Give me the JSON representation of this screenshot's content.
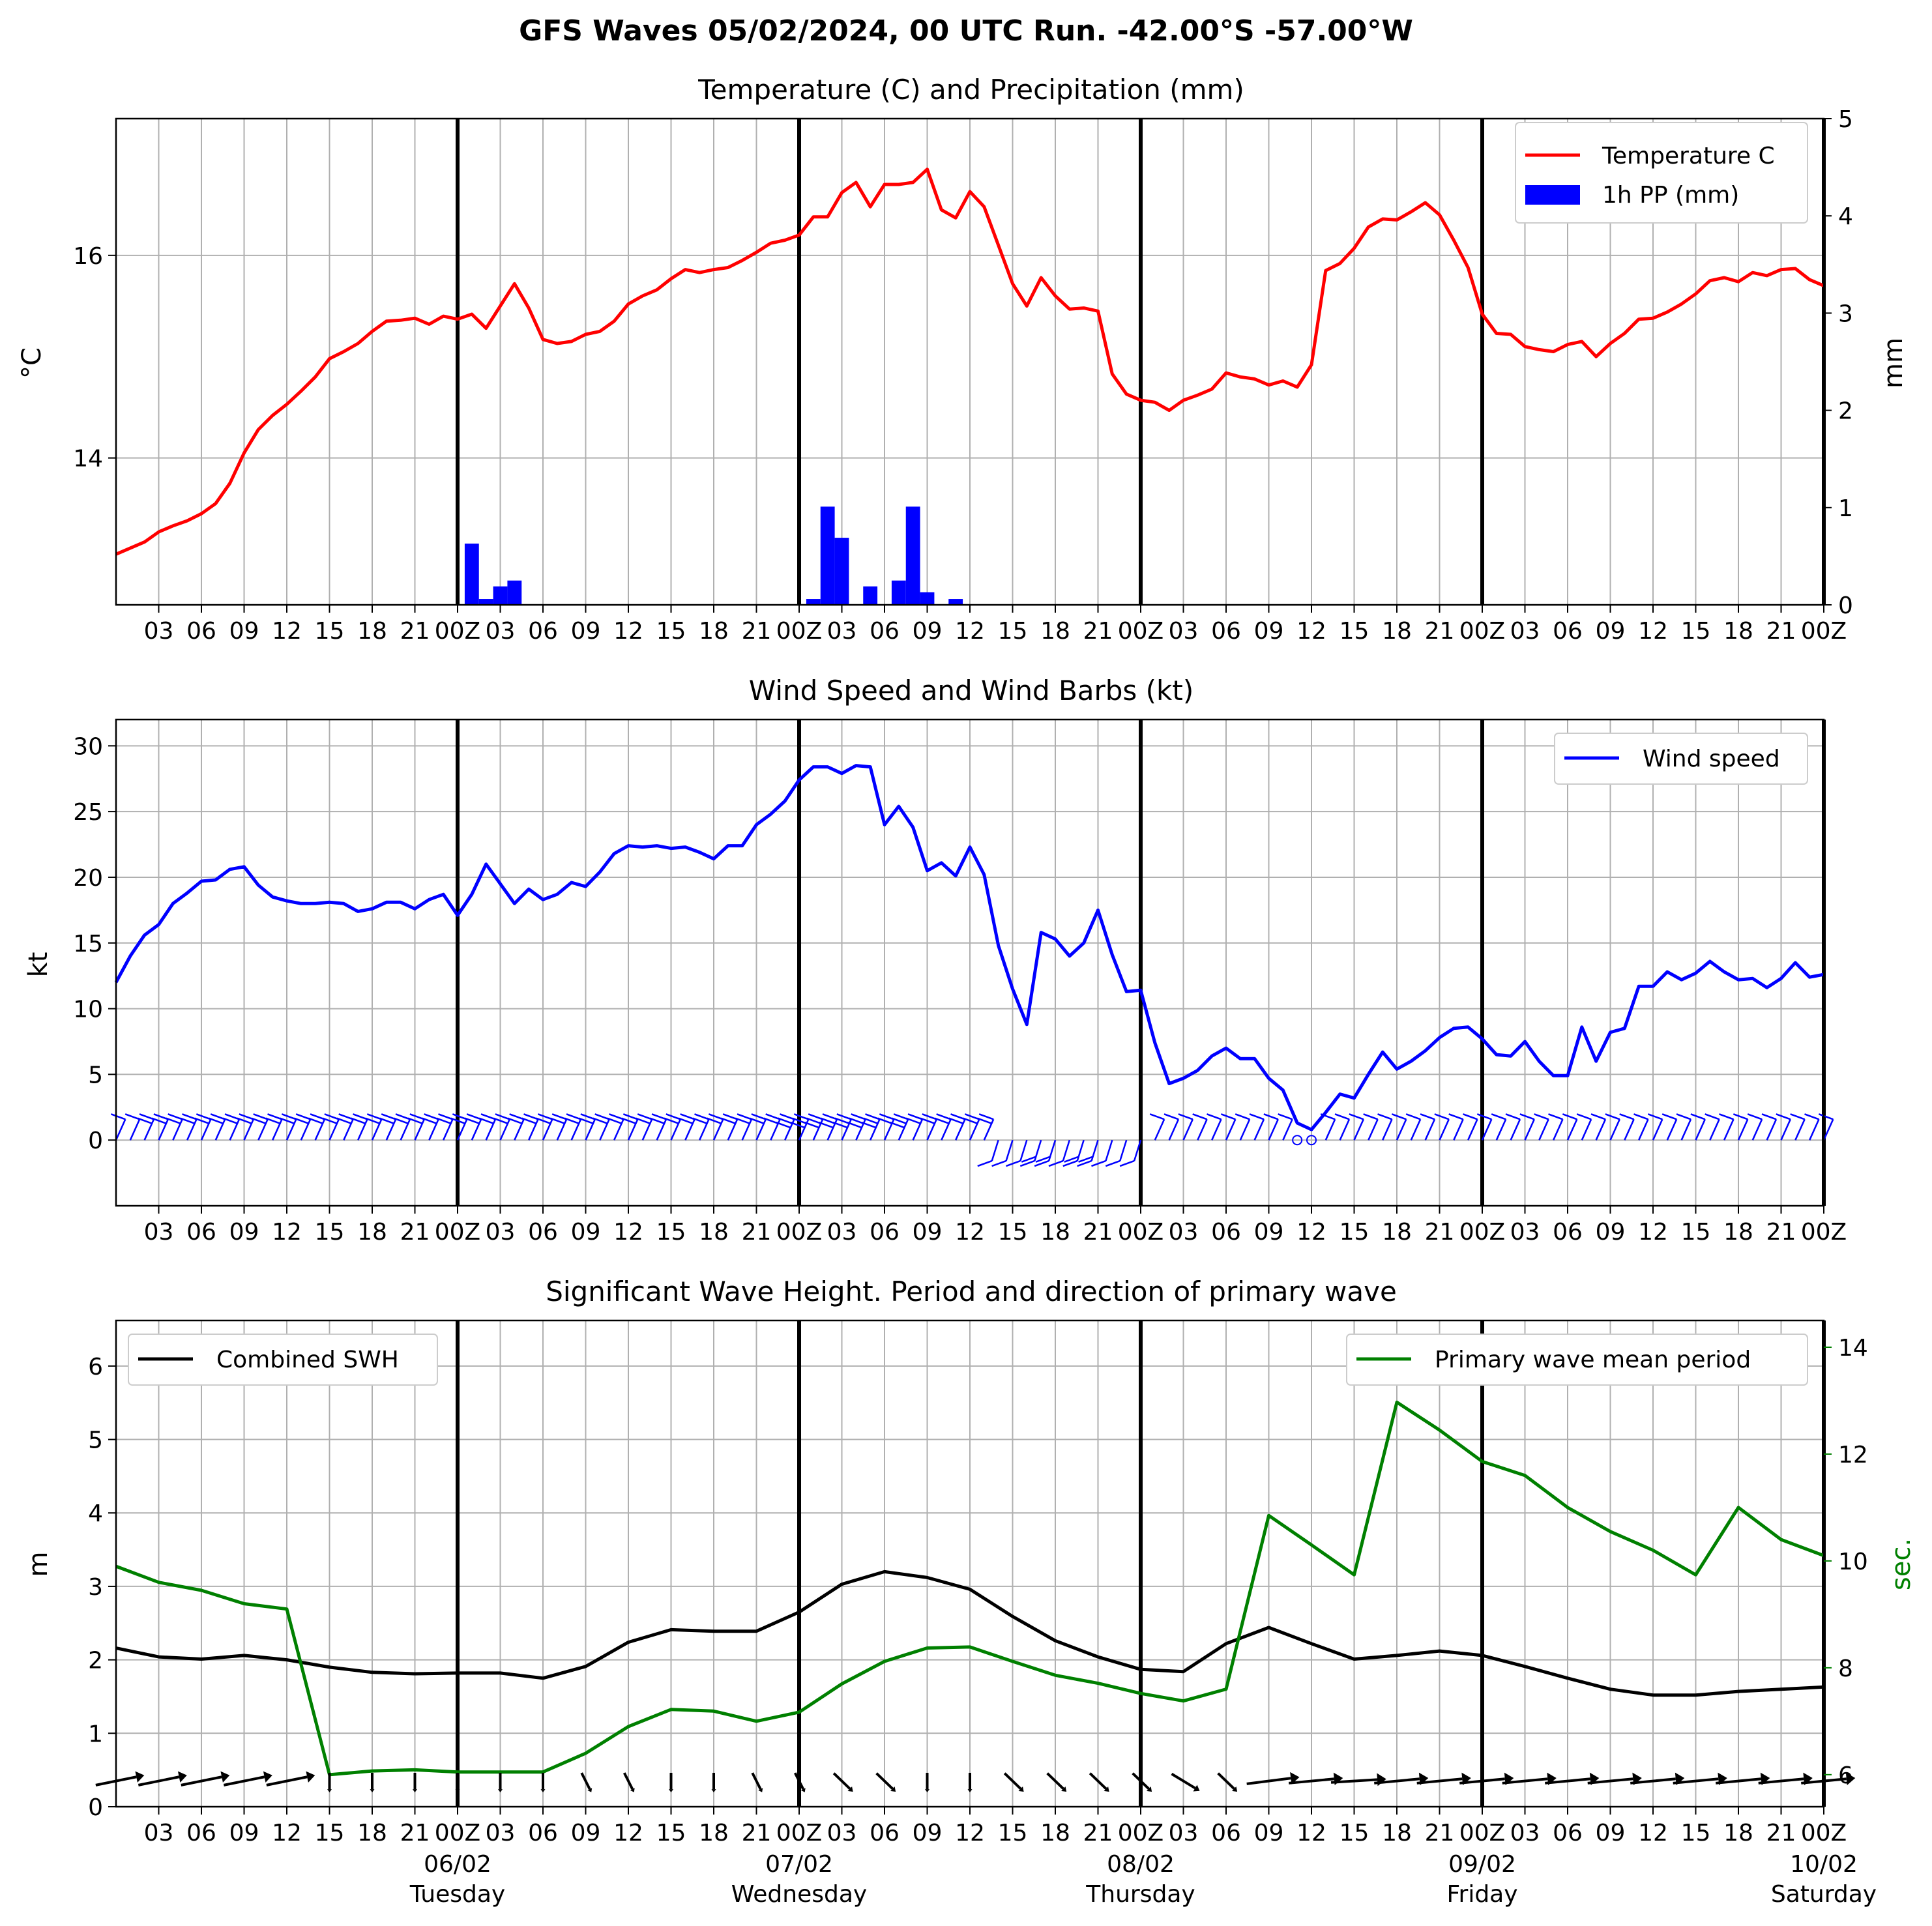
{
  "suptitle": "GFS Waves 05/02/2024, 00 UTC Run. -42.00°S -57.00°W",
  "colors": {
    "temperature": "#ff0000",
    "precip": "#0000ff",
    "wind": "#0000ff",
    "swh": "#000000",
    "period": "#008000",
    "grid": "#b0b0b0"
  },
  "x_ticks": {
    "labels": [
      "03",
      "06",
      "09",
      "12",
      "15",
      "18",
      "21",
      "00Z",
      "03",
      "06",
      "09",
      "12",
      "15",
      "18",
      "21",
      "00Z",
      "03",
      "06",
      "09",
      "12",
      "15",
      "18",
      "21",
      "00Z",
      "03",
      "06",
      "09",
      "12",
      "15",
      "18",
      "21",
      "00Z",
      "03",
      "06",
      "09",
      "12",
      "15",
      "18",
      "21",
      "00Z"
    ],
    "hours": [
      3,
      6,
      9,
      12,
      15,
      18,
      21,
      24,
      27,
      30,
      33,
      36,
      39,
      42,
      45,
      48,
      51,
      54,
      57,
      60,
      63,
      66,
      69,
      72,
      75,
      78,
      81,
      84,
      87,
      90,
      93,
      96,
      99,
      102,
      105,
      108,
      111,
      114,
      117,
      120
    ],
    "day_hours": [
      24,
      48,
      72,
      96,
      120
    ],
    "day_dates": [
      "06/02",
      "07/02",
      "08/02",
      "09/02",
      "10/02"
    ],
    "day_names": [
      "Tuesday",
      "Wednesday",
      "Thursday",
      "Friday",
      "Saturday"
    ]
  },
  "chart_data": [
    {
      "type": "line",
      "title": "Temperature (C) and Precipitation (mm)",
      "ylabel": "$^\\circ$C",
      "y2label": "mm",
      "xlim": [
        0,
        120
      ],
      "ylim": [
        12.55,
        17.35
      ],
      "y2lim": [
        0,
        5
      ],
      "yticks": [
        "14",
        "16"
      ],
      "y2ticks": [
        "0",
        "1",
        "2",
        "3",
        "4",
        "5"
      ],
      "legend": "upper right",
      "legend_entries": [
        "Temperature C",
        "1h PP (mm)"
      ],
      "temperature_c": {
        "x": [
          0,
          2,
          3,
          4,
          5,
          6,
          7,
          8,
          9,
          10,
          11,
          12,
          13,
          14,
          15,
          16,
          17,
          18,
          19,
          20,
          21,
          22,
          23,
          24,
          25,
          26,
          27,
          28,
          29,
          30,
          31,
          32,
          33,
          34,
          35,
          36,
          37,
          38,
          39,
          40,
          41,
          42,
          43,
          44,
          45,
          46,
          47,
          48,
          49,
          50,
          51,
          52,
          53,
          54,
          55,
          56,
          57,
          58,
          59,
          60,
          61,
          62,
          63,
          64,
          65,
          66,
          67,
          68,
          69,
          70,
          71,
          72,
          73,
          74,
          75,
          76,
          77,
          78,
          79,
          80,
          81,
          82,
          83,
          84,
          85,
          86,
          87,
          88,
          89,
          90,
          91,
          92,
          93,
          94,
          95,
          96,
          97,
          98,
          99,
          100,
          101,
          102,
          103,
          104,
          105,
          106,
          107,
          108,
          109,
          110,
          111,
          112,
          113,
          114,
          115,
          116,
          117,
          118,
          119,
          120
        ],
        "y": [
          13.05,
          13.17,
          13.27,
          13.33,
          13.38,
          13.45,
          13.55,
          13.75,
          14.05,
          14.28,
          14.42,
          14.53,
          14.66,
          14.8,
          14.98,
          15.05,
          15.13,
          15.25,
          15.35,
          15.36,
          15.38,
          15.32,
          15.4,
          15.37,
          15.42,
          15.28,
          15.5,
          15.72,
          15.48,
          15.17,
          15.13,
          15.15,
          15.22,
          15.25,
          15.35,
          15.52,
          15.6,
          15.66,
          15.77,
          15.86,
          15.83,
          15.86,
          15.88,
          15.95,
          16.03,
          16.12,
          16.15,
          16.2,
          16.38,
          16.38,
          16.62,
          16.72,
          16.48,
          16.7,
          16.7,
          16.72,
          16.85,
          16.45,
          16.37,
          16.63,
          16.48,
          16.1,
          15.72,
          15.5,
          15.78,
          15.6,
          15.47,
          15.48,
          15.45,
          14.83,
          14.63,
          14.57,
          14.55,
          14.47,
          14.57,
          14.62,
          14.68,
          14.84,
          14.8,
          14.78,
          14.72,
          14.76,
          14.7,
          14.92,
          15.85,
          15.92,
          16.07,
          16.28,
          16.36,
          16.35,
          16.43,
          16.52,
          16.4,
          16.15,
          15.88,
          15.42,
          15.23,
          15.22,
          15.1,
          15.07,
          15.05,
          15.12,
          15.15,
          15.0,
          15.13,
          15.23,
          15.37,
          15.38,
          15.44,
          15.52,
          15.62,
          15.75,
          15.78,
          15.74,
          15.83,
          15.8,
          15.86,
          15.87,
          15.76,
          15.7
        ]
      },
      "precip_mm": {
        "x": [
          25,
          26,
          27,
          28,
          49,
          50,
          51,
          53,
          55,
          56,
          57,
          59
        ],
        "y": [
          0.63,
          0.06,
          0.19,
          0.25,
          0.06,
          1.01,
          0.69,
          0.19,
          0.25,
          1.01,
          0.13,
          0.06
        ]
      }
    },
    {
      "type": "line",
      "title": "Wind Speed and Wind Barbs (kt)",
      "ylabel": "kt",
      "xlim": [
        0,
        120
      ],
      "ylim": [
        -5,
        32
      ],
      "yticks": [
        "0",
        "5",
        "10",
        "15",
        "20",
        "25",
        "30"
      ],
      "legend": "upper right",
      "legend_entries": [
        "Wind speed"
      ],
      "series": [
        {
          "name": "Wind speed",
          "x": [
            0,
            1,
            2,
            3,
            4,
            5,
            6,
            7,
            8,
            9,
            10,
            11,
            12,
            13,
            14,
            15,
            16,
            17,
            18,
            19,
            20,
            21,
            22,
            23,
            24,
            25,
            26,
            27,
            28,
            29,
            30,
            31,
            32,
            33,
            34,
            35,
            36,
            37,
            38,
            39,
            40,
            41,
            42,
            43,
            44,
            45,
            46,
            47,
            48,
            49,
            50,
            51,
            52,
            53,
            54,
            55,
            56,
            57,
            58,
            59,
            60,
            61,
            62,
            63,
            64,
            65,
            66,
            67,
            68,
            69,
            70,
            71,
            72,
            73,
            74,
            75,
            76,
            77,
            78,
            79,
            80,
            81,
            82,
            83,
            84,
            85,
            86,
            87,
            88,
            89,
            90,
            91,
            92,
            93,
            94,
            95,
            96,
            97,
            98,
            99,
            100,
            101,
            102,
            103,
            104,
            105,
            106,
            107,
            108,
            109,
            110,
            111,
            112,
            113,
            114,
            115,
            116,
            117,
            118,
            119,
            120
          ],
          "y": [
            12.0,
            14.0,
            15.6,
            16.4,
            18.0,
            18.8,
            19.7,
            19.8,
            20.6,
            20.8,
            19.4,
            18.5,
            18.2,
            18.0,
            18.0,
            18.1,
            18.0,
            17.4,
            17.6,
            18.1,
            18.1,
            17.6,
            18.3,
            18.7,
            17.1,
            18.7,
            21.0,
            19.5,
            18.0,
            19.1,
            18.3,
            18.7,
            19.6,
            19.3,
            20.4,
            21.8,
            22.4,
            22.3,
            22.4,
            22.2,
            22.3,
            21.9,
            21.4,
            22.4,
            22.4,
            24.0,
            24.8,
            25.8,
            27.4,
            28.4,
            28.4,
            27.9,
            28.5,
            28.4,
            24.0,
            25.4,
            23.8,
            20.5,
            21.1,
            20.1,
            22.3,
            20.2,
            14.8,
            11.5,
            8.8,
            15.8,
            15.3,
            14.0,
            15.0,
            17.5,
            14.1,
            11.3,
            11.4,
            7.4,
            4.3,
            4.7,
            5.3,
            6.4,
            7.0,
            6.2,
            6.2,
            4.7,
            3.8,
            1.3,
            0.8,
            2.1,
            3.5,
            3.2,
            5.0,
            6.7,
            5.4,
            6.0,
            6.8,
            7.8,
            8.5,
            8.6,
            7.7,
            6.5,
            6.4,
            7.5,
            6.0,
            4.9,
            4.9,
            8.6,
            6.0,
            8.2,
            8.5,
            11.7,
            11.7,
            12.8,
            12.2,
            12.7,
            13.6,
            12.8,
            12.2,
            12.3,
            11.6,
            12.3,
            13.5,
            12.4,
            12.6
          ]
        }
      ]
    },
    {
      "type": "line",
      "title": "Significant Wave Height. Period and direction of primary wave",
      "ylabel": "m",
      "y2label": "sec.",
      "xlim": [
        0,
        120
      ],
      "ylim": [
        0,
        6.62
      ],
      "y2lim": [
        5.4,
        14.5
      ],
      "yticks": [
        "0",
        "1",
        "2",
        "3",
        "4",
        "5",
        "6"
      ],
      "y2ticks": [
        "6",
        "8",
        "10",
        "12",
        "14"
      ],
      "legend_entries": [
        "Combined SWH",
        "Primary wave mean period"
      ],
      "series": [
        {
          "name": "Combined SWH",
          "x": [
            0,
            3,
            6,
            9,
            12,
            15,
            18,
            21,
            24,
            27,
            30,
            33,
            36,
            39,
            42,
            45,
            48,
            51,
            54,
            57,
            60,
            63,
            66,
            69,
            72,
            75,
            78,
            81,
            84,
            87,
            90,
            93,
            96,
            99,
            102,
            105,
            108,
            111,
            114,
            117,
            120
          ],
          "y": [
            2.16,
            2.04,
            2.01,
            2.06,
            2.0,
            1.9,
            1.83,
            1.81,
            1.82,
            1.82,
            1.75,
            1.91,
            2.24,
            2.41,
            2.39,
            2.39,
            2.65,
            3.03,
            3.2,
            3.12,
            2.96,
            2.59,
            2.26,
            2.04,
            1.87,
            1.84,
            2.22,
            2.44,
            2.22,
            2.01,
            2.06,
            2.12,
            2.06,
            1.91,
            1.75,
            1.6,
            1.52,
            1.52,
            1.57,
            1.6,
            1.63
          ]
        },
        {
          "name": "Primary wave mean period",
          "x": [
            0,
            3,
            6,
            9,
            12,
            15,
            18,
            21,
            24,
            27,
            30,
            33,
            36,
            39,
            42,
            45,
            48,
            51,
            54,
            57,
            60,
            63,
            66,
            69,
            72,
            75,
            78,
            81,
            84,
            87,
            90,
            93,
            96,
            99,
            102,
            105,
            108,
            111,
            114,
            117,
            120
          ],
          "y": [
            9.9,
            9.6,
            9.45,
            9.2,
            9.1,
            6.0,
            6.07,
            6.09,
            6.05,
            6.05,
            6.05,
            6.4,
            6.9,
            7.22,
            7.19,
            7.0,
            7.17,
            7.7,
            8.12,
            8.37,
            8.39,
            8.12,
            7.86,
            7.71,
            7.52,
            7.38,
            7.6,
            10.85,
            10.3,
            9.74,
            12.97,
            12.45,
            11.86,
            11.6,
            11.0,
            10.55,
            10.2,
            9.74,
            11.0,
            10.4,
            10.1
          ]
        }
      ],
      "wave_direction_arrows": {
        "x": [
          0,
          3,
          6,
          9,
          12,
          15,
          18,
          21,
          24,
          27,
          30,
          33,
          36,
          39,
          42,
          45,
          48,
          51,
          54,
          57,
          60,
          63,
          66,
          69,
          72,
          75,
          78,
          81,
          84,
          87,
          90,
          93,
          96,
          99,
          102,
          105,
          108,
          111,
          114,
          117,
          120
        ],
        "toward_deg": [
          60,
          60,
          60,
          60,
          60,
          180,
          180,
          180,
          180,
          180,
          180,
          170,
          170,
          180,
          180,
          170,
          170,
          160,
          160,
          180,
          180,
          160,
          160,
          160,
          160,
          150,
          160,
          70,
          75,
          80,
          75,
          75,
          75,
          75,
          75,
          75,
          75,
          75,
          75,
          75,
          75
        ]
      }
    }
  ]
}
